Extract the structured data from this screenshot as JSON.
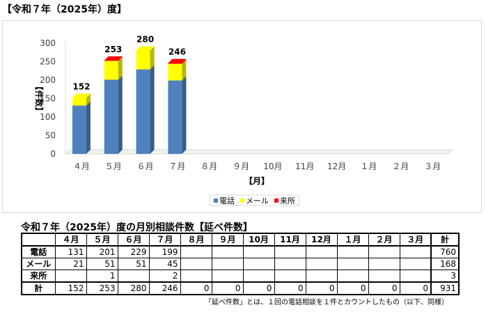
{
  "page": {
    "title": "【令和７年（2025年）度】"
  },
  "chart_data": {
    "type": "bar",
    "stacked": true,
    "categories": [
      "４月",
      "５月",
      "６月",
      "７月",
      "８月",
      "９月",
      "10月",
      "11月",
      "12月",
      "１月",
      "２月",
      "３月"
    ],
    "series": [
      {
        "name": "電話",
        "color": "#4f81bd",
        "values": [
          131,
          201,
          229,
          199,
          0,
          0,
          0,
          0,
          0,
          0,
          0,
          0
        ]
      },
      {
        "name": "メール",
        "color": "#ffff00",
        "values": [
          21,
          51,
          51,
          45,
          0,
          0,
          0,
          0,
          0,
          0,
          0,
          0
        ]
      },
      {
        "name": "来所",
        "color": "#ff0000",
        "values": [
          0,
          1,
          0,
          2,
          0,
          0,
          0,
          0,
          0,
          0,
          0,
          0
        ]
      }
    ],
    "totals": [
      "152",
      "253",
      "280",
      "246"
    ],
    "ylabel": "【件数】",
    "xlabel": "【月】",
    "ylim": [
      0,
      300
    ],
    "yticks": [
      0,
      50,
      100,
      150,
      200,
      250,
      300
    ],
    "grid": false,
    "legend_position": "bottom"
  },
  "table": {
    "title": "令和７年（2025年）度の月別相談件数【延べ件数】",
    "corner": "",
    "headers": [
      "４月",
      "５月",
      "６月",
      "７月",
      "８月",
      "９月",
      "10月",
      "11月",
      "12月",
      "１月",
      "２月",
      "３月"
    ],
    "total_header": "計",
    "rows": [
      {
        "label": "電話",
        "cells": [
          "131",
          "201",
          "229",
          "199",
          "",
          "",
          "",
          "",
          "",
          "",
          "",
          ""
        ],
        "total": "760"
      },
      {
        "label": "メール",
        "cells": [
          "21",
          "51",
          "51",
          "45",
          "",
          "",
          "",
          "",
          "",
          "",
          "",
          ""
        ],
        "total": "168"
      },
      {
        "label": "来所",
        "cells": [
          "",
          "1",
          "",
          "2",
          "",
          "",
          "",
          "",
          "",
          "",
          "",
          ""
        ],
        "total": "3"
      },
      {
        "label": "計",
        "cells": [
          "152",
          "253",
          "280",
          "246",
          "0",
          "0",
          "0",
          "0",
          "0",
          "0",
          "0",
          "0"
        ],
        "total": "931"
      }
    ]
  },
  "footnote": "「延べ件数」とは、１回の電話相談を１件とカウントしたもの（以下、同様）"
}
